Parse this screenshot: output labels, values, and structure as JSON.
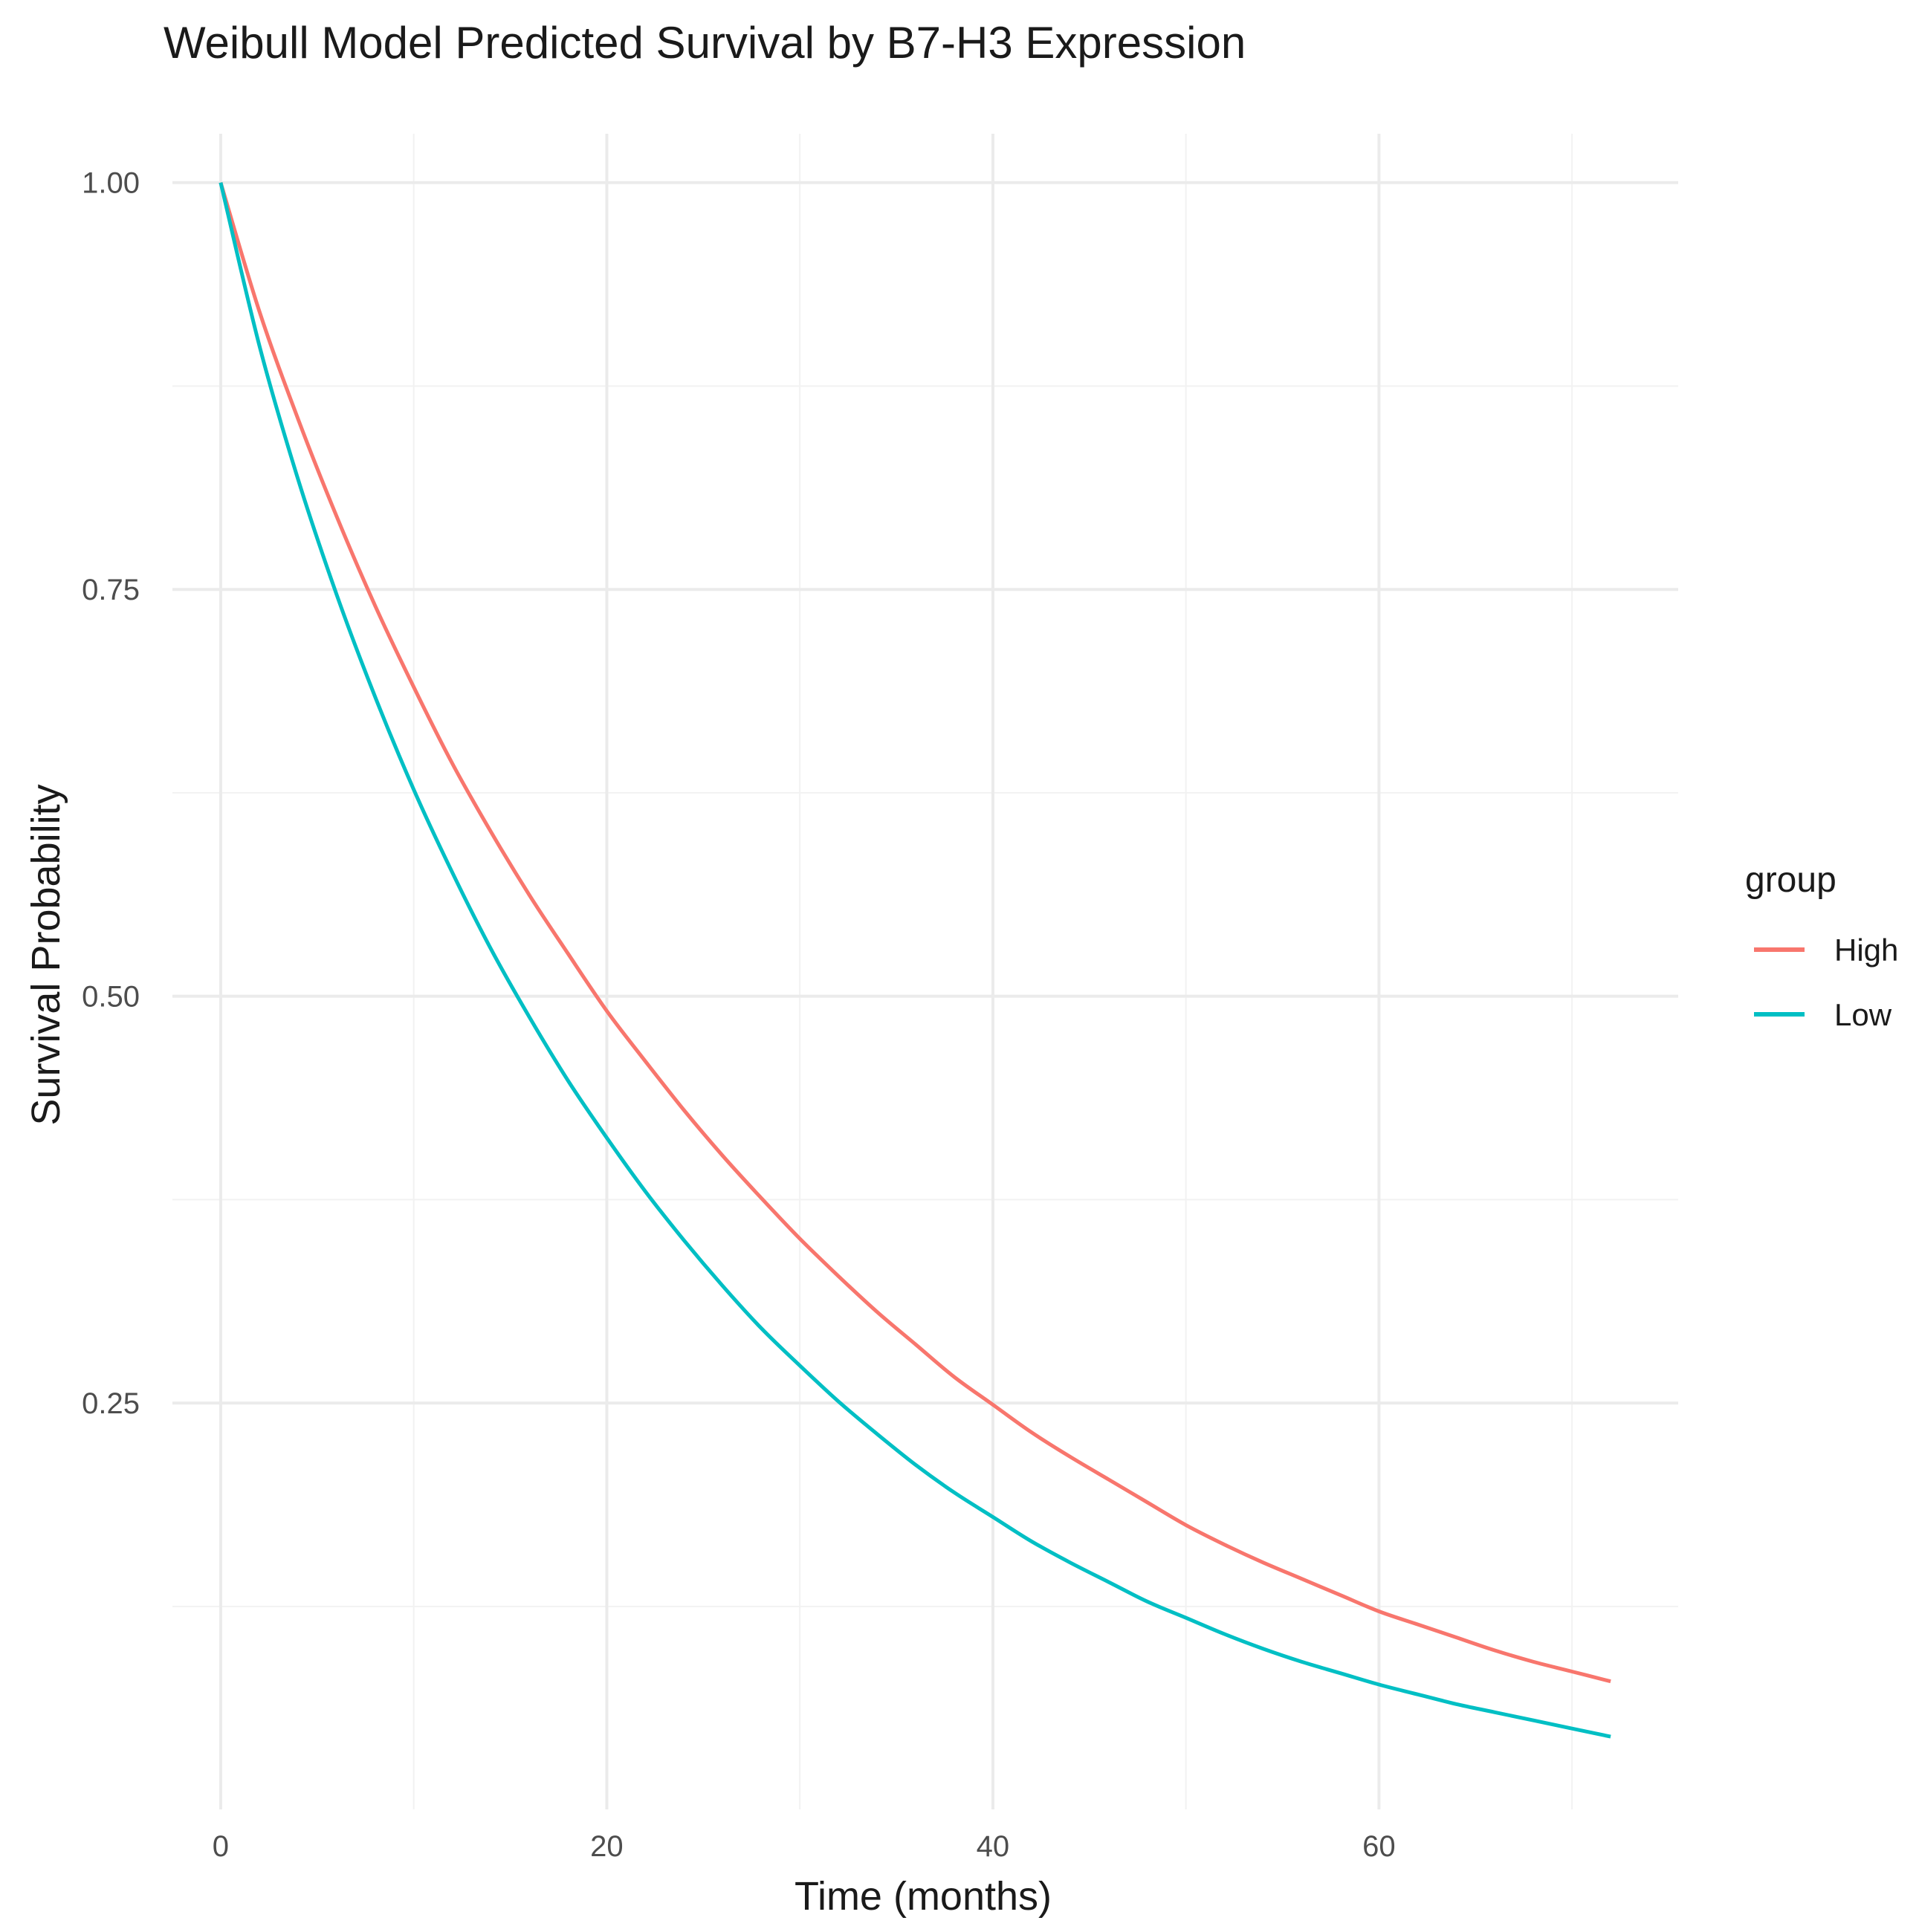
{
  "chart_data": {
    "type": "line",
    "title": "Weibull Model Predicted Survival by B7-H3 Expression",
    "xlabel": "Time (months)",
    "ylabel": "Survival Probability",
    "xlim": [
      -2.5,
      75.5
    ],
    "ylim": [
      0.0003,
      1.03
    ],
    "x_ticks": [
      0,
      20,
      40,
      60
    ],
    "x_tick_labels": [
      "0",
      "20",
      "40",
      "60"
    ],
    "y_ticks": [
      0.25,
      0.5,
      0.75,
      1.0
    ],
    "y_tick_labels": [
      "0.25",
      "0.50",
      "0.75",
      "1.00"
    ],
    "grid": true,
    "legend": {
      "title": "group",
      "position": "right"
    },
    "series": [
      {
        "name": "High",
        "color": "#F8766D",
        "x": [
          0,
          2,
          4,
          6,
          8,
          10,
          12,
          14,
          16,
          18,
          20,
          22,
          24,
          26,
          28,
          30,
          32,
          34,
          36,
          38,
          40,
          42,
          44,
          46,
          48,
          50,
          52,
          54,
          56,
          58,
          60,
          62,
          64,
          66,
          68,
          70,
          72
        ],
        "y": [
          1.0,
          0.921,
          0.855,
          0.795,
          0.74,
          0.69,
          0.643,
          0.601,
          0.562,
          0.526,
          0.491,
          0.46,
          0.43,
          0.402,
          0.376,
          0.351,
          0.328,
          0.306,
          0.286,
          0.266,
          0.249,
          0.232,
          0.217,
          0.203,
          0.189,
          0.175,
          0.163,
          0.152,
          0.142,
          0.132,
          0.122,
          0.114,
          0.106,
          0.098,
          0.091,
          0.085,
          0.079
        ]
      },
      {
        "name": "Low",
        "color": "#00BFC4",
        "x": [
          0,
          2,
          4,
          6,
          8,
          10,
          12,
          14,
          16,
          18,
          20,
          22,
          24,
          26,
          28,
          30,
          32,
          34,
          36,
          38,
          40,
          42,
          44,
          46,
          48,
          50,
          52,
          54,
          56,
          58,
          60,
          62,
          64,
          66,
          68,
          70,
          72
        ],
        "y": [
          1.0,
          0.9,
          0.818,
          0.747,
          0.684,
          0.627,
          0.576,
          0.529,
          0.487,
          0.448,
          0.413,
          0.38,
          0.35,
          0.322,
          0.296,
          0.273,
          0.251,
          0.231,
          0.212,
          0.195,
          0.18,
          0.165,
          0.152,
          0.14,
          0.128,
          0.118,
          0.108,
          0.099,
          0.091,
          0.084,
          0.077,
          0.071,
          0.065,
          0.06,
          0.055,
          0.05,
          0.045
        ]
      }
    ]
  }
}
